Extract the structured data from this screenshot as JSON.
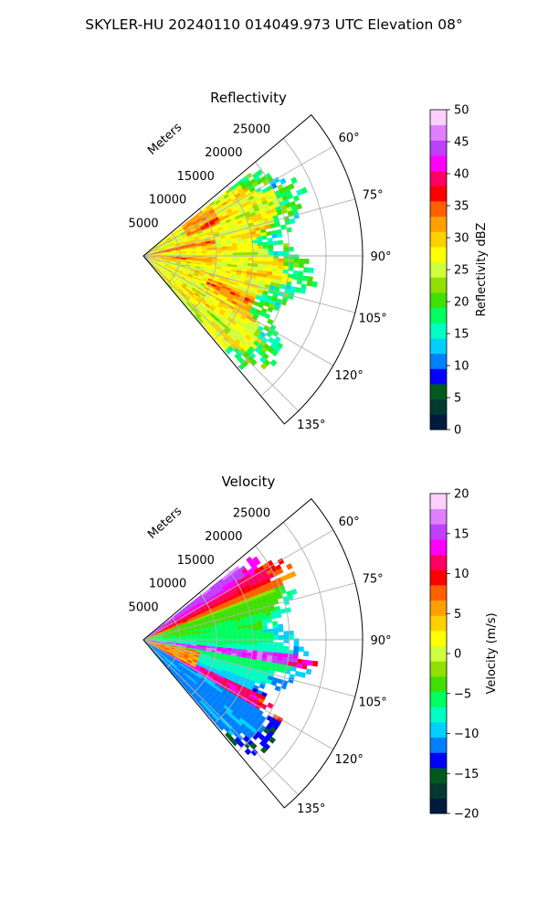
{
  "figure": {
    "suptitle": "SKYLER-HU  20240110  014049.973 UTC Elevation 08°"
  },
  "chart_data": [
    {
      "type": "heatmap",
      "subtype": "polar-sector",
      "title": "Reflectivity",
      "radial_axis_label": "Meters",
      "radial_ticks": [
        5000,
        10000,
        15000,
        20000,
        25000
      ],
      "radial_tick_labels": [
        "5000",
        "10000",
        "15000",
        "20000",
        "25000"
      ],
      "radial_range": [
        0,
        30000
      ],
      "azimuth_range_deg": [
        50,
        140
      ],
      "azimuth_ticks": [
        60,
        75,
        90,
        105,
        120,
        135
      ],
      "azimuth_tick_labels": [
        "60°",
        "75°",
        "90°",
        "105°",
        "120°",
        "135°"
      ],
      "grid": true,
      "data_extent": {
        "azimuth_deg": [
          52,
          138
        ],
        "max_range_m": [
          19000,
          23000
        ]
      },
      "colorbar": {
        "label": "Reflectivity dBZ",
        "vmin": 0,
        "vmax": 50,
        "ticks": [
          0,
          5,
          10,
          15,
          20,
          25,
          30,
          35,
          40,
          45,
          50
        ],
        "tick_labels": [
          "0",
          "5",
          "10",
          "15",
          "20",
          "25",
          "30",
          "35",
          "40",
          "45",
          "50"
        ],
        "colors": [
          "#001a40",
          "#003a30",
          "#005a20",
          "#0000ff",
          "#0080ff",
          "#00d0ff",
          "#00ffc0",
          "#00ff60",
          "#40e000",
          "#90e000",
          "#d0ff40",
          "#ffff00",
          "#ffd000",
          "#ffa000",
          "#ff6000",
          "#ff0000",
          "#ff0060",
          "#ff00ff",
          "#c040ff",
          "#e080ff",
          "#ffd0ff"
        ]
      },
      "field_description": "Mostly 25–30 dBZ (yellow/orange) with red 33–38 dBZ bands; green 20 dBZ fringe at outer edge"
    },
    {
      "type": "heatmap",
      "subtype": "polar-sector",
      "title": "Velocity",
      "radial_axis_label": "Meters",
      "radial_ticks": [
        5000,
        10000,
        15000,
        20000,
        25000
      ],
      "radial_tick_labels": [
        "5000",
        "10000",
        "15000",
        "20000",
        "25000"
      ],
      "radial_range": [
        0,
        30000
      ],
      "azimuth_range_deg": [
        50,
        140
      ],
      "azimuth_ticks": [
        60,
        75,
        90,
        105,
        120,
        135
      ],
      "azimuth_tick_labels": [
        "60°",
        "75°",
        "90°",
        "105°",
        "120°",
        "135°"
      ],
      "grid": true,
      "data_extent": {
        "azimuth_deg": [
          52,
          138
        ],
        "max_range_m": [
          19000,
          23000
        ]
      },
      "colorbar": {
        "label": "Velocity (m/s)",
        "vmin": -20,
        "vmax": 20,
        "ticks": [
          -20,
          -15,
          -10,
          -5,
          0,
          5,
          10,
          15,
          20
        ],
        "tick_labels": [
          "−20",
          "−15",
          "−10",
          "−5",
          "0",
          "5",
          "10",
          "15",
          "20"
        ],
        "colors": [
          "#001a40",
          "#003a30",
          "#005a20",
          "#0000ff",
          "#0080ff",
          "#00d0ff",
          "#00ffc0",
          "#00ff60",
          "#40e000",
          "#90e000",
          "#d0ff40",
          "#ffff00",
          "#ffd000",
          "#ffa000",
          "#ff6000",
          "#ff0000",
          "#ff0060",
          "#ff00ff",
          "#c040ff",
          "#e080ff",
          "#ffd0ff"
        ]
      },
      "field_description": "Positive (yellow/orange/magenta) near 60°, green negative 80–120°, magenta folded band near 100°, cyan beyond 120°"
    }
  ]
}
